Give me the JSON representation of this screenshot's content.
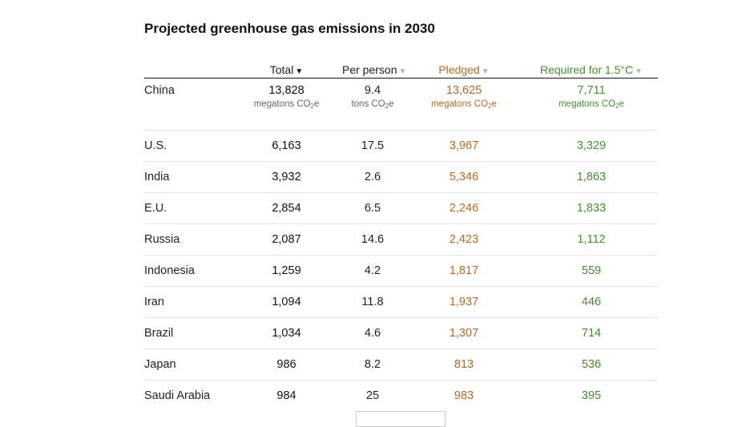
{
  "title": "Projected greenhouse gas emissions in 2030",
  "colors": {
    "pledged": "#b06a24",
    "required": "#4a8a32",
    "text": "#222222"
  },
  "chart_data": {
    "type": "table",
    "title": "Projected greenhouse gas emissions in 2030",
    "sort": {
      "column": "Total",
      "direction": "descending"
    },
    "columns": [
      {
        "label": "",
        "unit": ""
      },
      {
        "label": "Total",
        "unit": "megatons CO",
        "unit_sub": "2",
        "unit_after": "e",
        "arrow": "▼",
        "active": true
      },
      {
        "label": "Per person",
        "unit": "tons CO",
        "unit_sub": "2",
        "unit_after": "e",
        "arrow": "▼",
        "active": false
      },
      {
        "label": "Pledged",
        "unit": "megatons CO",
        "unit_sub": "2",
        "unit_after": "e",
        "arrow": "▼",
        "active": false
      },
      {
        "label": "Required for 1.5°C",
        "unit": "megatons CO",
        "unit_sub": "2",
        "unit_after": "e",
        "arrow": "▼",
        "active": false
      }
    ],
    "rows": [
      [
        "China",
        "13,828",
        "9.4",
        "13,625",
        "7,711"
      ],
      [
        "U.S.",
        "6,163",
        "17.5",
        "3,967",
        "3,329"
      ],
      [
        "India",
        "3,932",
        "2.6",
        "5,346",
        "1,863"
      ],
      [
        "E.U.",
        "2,854",
        "6.5",
        "2,246",
        "1,833"
      ],
      [
        "Russia",
        "2,087",
        "14.6",
        "2,423",
        "1,112"
      ],
      [
        "Indonesia",
        "1,259",
        "4.2",
        "1,817",
        "559"
      ],
      [
        "Iran",
        "1,094",
        "11.8",
        "1,937",
        "446"
      ],
      [
        "Brazil",
        "1,034",
        "4.6",
        "1,307",
        "714"
      ],
      [
        "Japan",
        "986",
        "8.2",
        "813",
        "536"
      ],
      [
        "Saudi Arabia",
        "984",
        "25",
        "983",
        "395"
      ]
    ]
  }
}
